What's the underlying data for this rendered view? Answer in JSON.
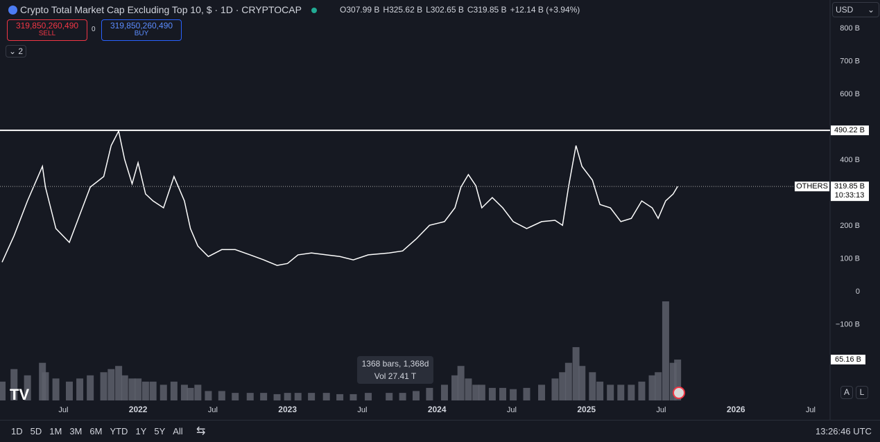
{
  "ui": {
    "title": "Crypto Total Market Cap Excluding Top 10, $ · 1D · CRYPTOCAP",
    "ohlc": [
      {
        "key": "O",
        "value": "307.99 B"
      },
      {
        "key": "H",
        "value": "325.62 B"
      },
      {
        "key": "L",
        "value": "302.65 B"
      },
      {
        "key": "C",
        "value": "319.85 B"
      }
    ],
    "change": "+12.14 B (+3.94%)",
    "sell_price": "319,850,260,490",
    "sell": "SELL",
    "spread": "0",
    "buy_price": "319,850,260,490",
    "buy": "BUY",
    "indicators": "2",
    "currency": "USD",
    "tooltip_bars": "1368 bars, 1,368d",
    "tooltip_vol": "Vol 27.41 T",
    "ranges": [
      "1D",
      "5D",
      "1M",
      "3M",
      "6M",
      "YTD",
      "1Y",
      "5Y",
      "All"
    ],
    "clock": "13:26:46 UTC",
    "auto": "A",
    "log": "L"
  },
  "chart_data": {
    "type": "line",
    "x": [
      2021.09,
      2021.17,
      2021.26,
      2021.36,
      2021.38,
      2021.45,
      2021.54,
      2021.61,
      2021.68,
      2021.77,
      2021.82,
      2021.87,
      2021.91,
      2021.96,
      2022.0,
      2022.05,
      2022.1,
      2022.17,
      2022.24,
      2022.31,
      2022.35,
      2022.4,
      2022.47,
      2022.56,
      2022.65,
      2022.75,
      2022.84,
      2022.93,
      2023.0,
      2023.07,
      2023.16,
      2023.26,
      2023.35,
      2023.44,
      2023.54,
      2023.68,
      2023.77,
      2023.86,
      2023.95,
      2024.05,
      2024.12,
      2024.16,
      2024.21,
      2024.26,
      2024.3,
      2024.37,
      2024.44,
      2024.51,
      2024.6,
      2024.7,
      2024.79,
      2024.84,
      2024.88,
      2024.93,
      2024.97,
      2025.04,
      2025.09,
      2025.16,
      2025.23,
      2025.3,
      2025.37,
      2025.44,
      2025.48,
      2025.53,
      2025.58,
      2025.61
    ],
    "series": [
      {
        "name": "OTHERS",
        "color": "#ffffff",
        "values": [
          90,
          170,
          276,
          381,
          318,
          192,
          150,
          234,
          318,
          350,
          444,
          488,
          402,
          328,
          392,
          297,
          276,
          255,
          350,
          276,
          192,
          139,
          107,
          128,
          128,
          112,
          97,
          80,
          86,
          112,
          118,
          112,
          107,
          97,
          112,
          118,
          124,
          160,
          202,
          213,
          255,
          318,
          356,
          322,
          255,
          286,
          255,
          213,
          192,
          213,
          217,
          202,
          318,
          444,
          381,
          339,
          265,
          255,
          213,
          223,
          276,
          255,
          223,
          276,
          297,
          319.85
        ],
        "last_label": "319.85 B",
        "countdown": "10:33:13"
      },
      {
        "name": "Vol",
        "color": "#5d606b",
        "axis": "y2",
        "values": [
          30,
          50,
          40,
          60,
          45,
          35,
          30,
          35,
          40,
          45,
          50,
          55,
          40,
          35,
          35,
          30,
          30,
          25,
          30,
          25,
          20,
          25,
          15,
          15,
          12,
          12,
          12,
          10,
          12,
          12,
          12,
          12,
          10,
          10,
          12,
          12,
          12,
          15,
          20,
          25,
          40,
          55,
          35,
          25,
          25,
          20,
          20,
          18,
          20,
          25,
          35,
          45,
          60,
          85,
          55,
          45,
          30,
          25,
          25,
          25,
          30,
          40,
          45,
          158,
          60,
          65.16
        ],
        "last_label": "65.16 B"
      }
    ],
    "hline": {
      "value": 490.22,
      "label": "490.22 B"
    },
    "xlim": [
      2021.09,
      2026.63
    ],
    "ylim": [
      -330,
      823
    ],
    "y2lim": [
      0,
      158
    ],
    "xticks": [
      {
        "value": 2021.5,
        "label": "Jul"
      },
      2022,
      {
        "value": 2022.5,
        "label": "Jul"
      },
      2023,
      {
        "value": 2023.5,
        "label": "Jul"
      },
      2024,
      {
        "value": 2024.5,
        "label": "Jul"
      },
      2025,
      {
        "value": 2025.5,
        "label": "Jul"
      },
      2026,
      {
        "value": 2026.5,
        "label": "Jul"
      }
    ],
    "yticks": [
      {
        "value": -100,
        "label": "−100 B"
      },
      0,
      {
        "value": 100,
        "label": "100 B"
      },
      {
        "value": 200,
        "label": "200 B"
      },
      {
        "value": 400,
        "label": "400 B"
      },
      {
        "value": 600,
        "label": "600 B"
      },
      {
        "value": 700,
        "label": "700 B"
      },
      {
        "value": 800,
        "label": "800 B"
      }
    ]
  }
}
